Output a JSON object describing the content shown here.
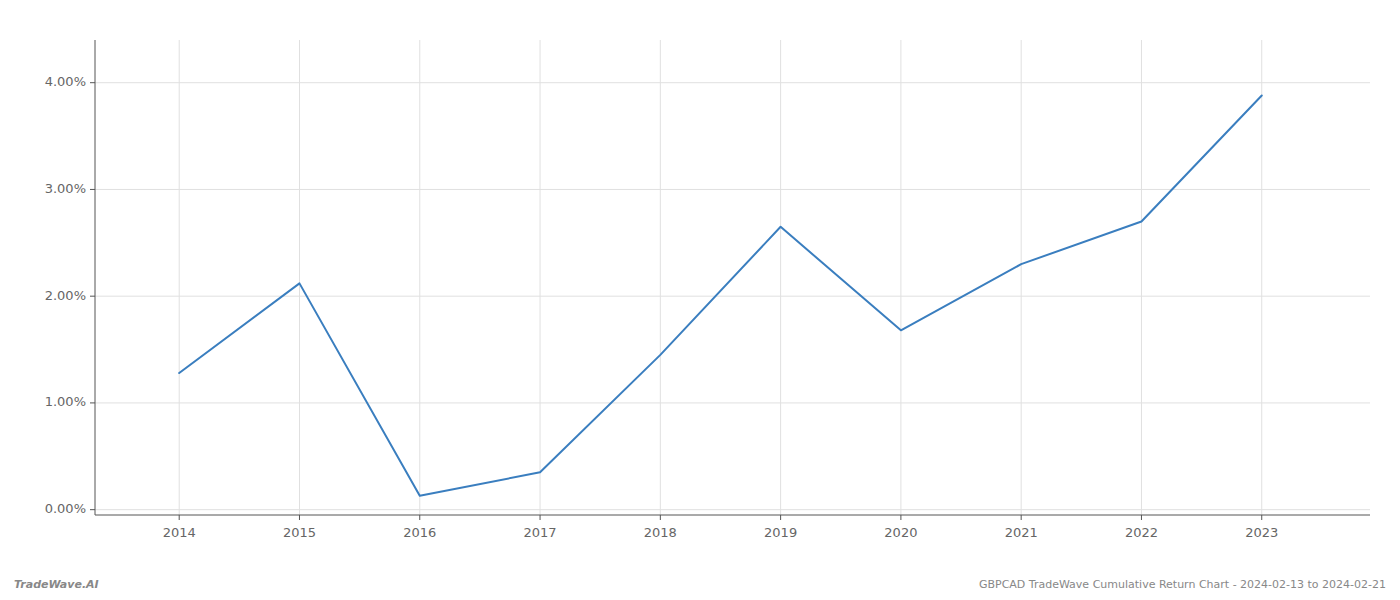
{
  "chart_data": {
    "type": "line",
    "x": [
      2014,
      2015,
      2016,
      2017,
      2018,
      2019,
      2020,
      2021,
      2022,
      2023
    ],
    "values": [
      1.28,
      2.12,
      0.13,
      0.35,
      1.45,
      2.65,
      1.68,
      2.3,
      2.7,
      3.88
    ],
    "color": "#3a7ebf",
    "xlim": [
      2013.3,
      2023.9
    ],
    "ylim": [
      -0.05,
      4.4
    ],
    "xticks": [
      2014,
      2015,
      2016,
      2017,
      2018,
      2019,
      2020,
      2021,
      2022,
      2023
    ],
    "yticks": [
      {
        "value": 0.0,
        "label": "0.00%"
      },
      {
        "value": 1.0,
        "label": "1.00%"
      },
      {
        "value": 2.0,
        "label": "2.00%"
      },
      {
        "value": 3.0,
        "label": "3.00%"
      },
      {
        "value": 4.0,
        "label": "4.00%"
      }
    ],
    "grid": true,
    "annotations": [
      "TradeWave.AI",
      "GBPCAD TradeWave Cumulative Return Chart - 2024-02-13 to 2024-02-21"
    ]
  }
}
